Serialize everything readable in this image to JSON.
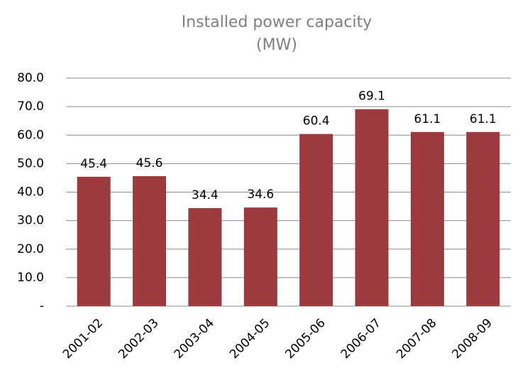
{
  "chart_data": {
    "type": "bar",
    "title": [
      "Installed power capacity",
      "(MW)"
    ],
    "categories": [
      "2001-02",
      "2002-03",
      "2003-04",
      "2004-05",
      "2005-06",
      "2006-07",
      "2007-08",
      "2008-09"
    ],
    "values": [
      45.4,
      45.6,
      34.4,
      34.6,
      60.4,
      69.1,
      61.1,
      61.1
    ],
    "color": "#9c3a40",
    "ylim": [
      0,
      80
    ],
    "yticks": [
      {
        "value": 0,
        "label": "-"
      },
      {
        "value": 10,
        "label": "10.0"
      },
      {
        "value": 20,
        "label": "20.0"
      },
      {
        "value": 30,
        "label": "30.0"
      },
      {
        "value": 40,
        "label": "40.0"
      },
      {
        "value": 50,
        "label": "50.0"
      },
      {
        "value": 60,
        "label": "60.0"
      },
      {
        "value": 70,
        "label": "70.0"
      },
      {
        "value": 80,
        "label": "80.0"
      }
    ],
    "grid": true
  }
}
